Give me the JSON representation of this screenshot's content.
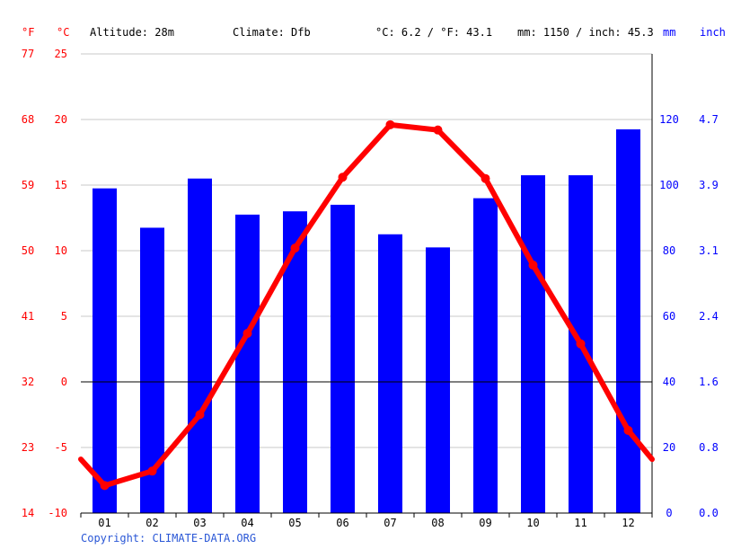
{
  "header": {
    "unit_f": "°F",
    "unit_c": "°C",
    "altitude": "Altitude: 28m",
    "climate": "Climate: Dfb",
    "temp_avg": "°C: 6.2 / °F: 43.1",
    "precip_total": "mm: 1150 / inch: 45.3",
    "unit_mm": "mm",
    "unit_inch": "inch"
  },
  "copyright": "Copyright: CLIMATE-DATA.ORG",
  "colors": {
    "temperature": "#ff0000",
    "precipitation": "#0000ff",
    "grid": "#c8c8c8",
    "zero_line": "#000000",
    "copyright": "#2a57d6"
  },
  "chart_data": {
    "type": "bar",
    "categories": [
      "01",
      "02",
      "03",
      "04",
      "05",
      "06",
      "07",
      "08",
      "09",
      "10",
      "11",
      "12"
    ],
    "series": [
      {
        "kind": "bar",
        "axis": "right_mm",
        "values": [
          99,
          87,
          102,
          91,
          92,
          94,
          85,
          81,
          96,
          103,
          103,
          117
        ]
      },
      {
        "kind": "line",
        "axis": "left_c",
        "values": [
          -7.9,
          -6.8,
          -2.5,
          3.7,
          10.2,
          15.6,
          19.6,
          19.2,
          15.5,
          8.9,
          2.9,
          -3.7
        ]
      }
    ],
    "line_start_value": -5.9,
    "line_end_value": -5.9,
    "y_left_c": {
      "ylim": [
        -10,
        25
      ],
      "ticks": [
        -10,
        -5,
        0,
        5,
        10,
        15,
        20,
        25
      ]
    },
    "y_left_f": {
      "ticks": [
        "14",
        "23",
        "32",
        "41",
        "50",
        "59",
        "68",
        "77"
      ]
    },
    "y_right_mm": {
      "ylim": [
        0,
        140
      ],
      "ticks": [
        0,
        20,
        40,
        60,
        80,
        100,
        120
      ]
    },
    "y_right_inch": {
      "ticks": [
        "0.0",
        "0.8",
        "1.6",
        "2.4",
        "3.1",
        "3.9",
        "4.7"
      ]
    },
    "grid": true
  }
}
